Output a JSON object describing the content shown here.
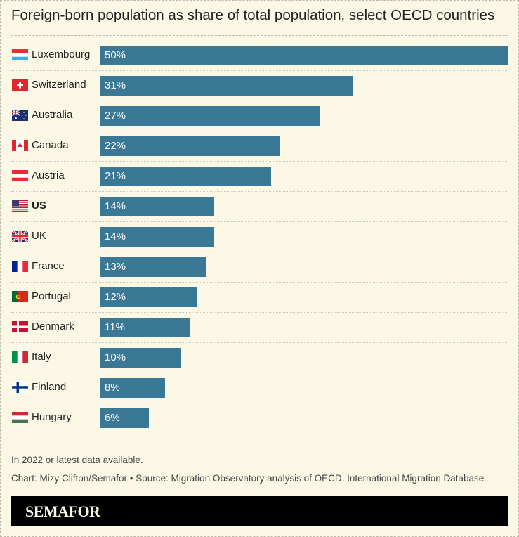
{
  "chart_data": {
    "type": "bar",
    "orientation": "horizontal",
    "title": "Foreign-born population as share of total population, select OECD countries",
    "categories": [
      "Luxembourg",
      "Switzerland",
      "Australia",
      "Canada",
      "Austria",
      "US",
      "UK",
      "France",
      "Portugal",
      "Denmark",
      "Italy",
      "Finland",
      "Hungary"
    ],
    "values": [
      50,
      31,
      27,
      22,
      21,
      14,
      14,
      13,
      12,
      11,
      10,
      8,
      6
    ],
    "labels": [
      "50%",
      "31%",
      "27%",
      "22%",
      "21%",
      "14%",
      "14%",
      "13%",
      "12%",
      "11%",
      "10%",
      "8%",
      "6%"
    ],
    "flags": [
      "luxembourg-flag",
      "switzerland-flag",
      "australia-flag",
      "canada-flag",
      "austria-flag",
      "us-flag",
      "uk-flag",
      "france-flag",
      "portugal-flag",
      "denmark-flag",
      "italy-flag",
      "finland-flag",
      "hungary-flag"
    ],
    "highlighted": "US",
    "xlim": [
      0,
      50
    ],
    "bar_color": "#3a7896",
    "grid": false
  },
  "notes": {
    "note": "In 2022 or latest data available.",
    "source": "Chart: Mizy Clifton/Semafor • Source: Migration Observatory analysis of OECD, International Migration Database"
  },
  "logo": "SEMAFOR"
}
